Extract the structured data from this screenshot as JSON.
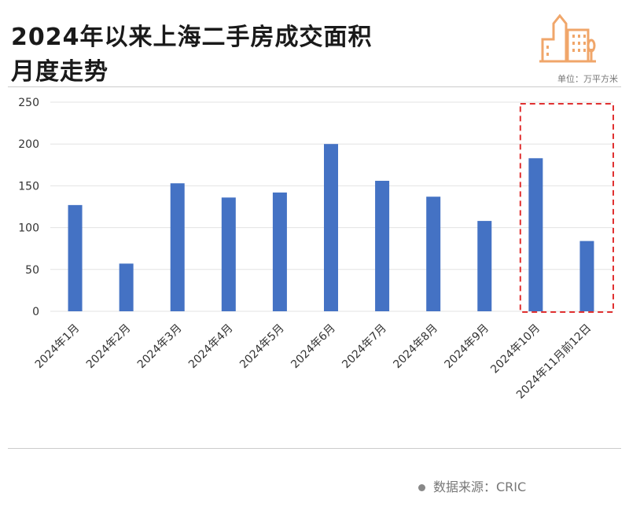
{
  "header": {
    "title_line1": "2024年以来上海二手房成交面积",
    "title_line2": "月度走势",
    "unit": "单位：万平方米",
    "icon": "building-icon"
  },
  "footer": {
    "source": "数据来源：CRIC"
  },
  "colors": {
    "bar": "#4472c4",
    "highlight": "#e03030",
    "icon": "#f0a66a"
  },
  "chart_data": {
    "type": "bar",
    "title": "2024年以来上海二手房成交面积月度走势",
    "xlabel": "",
    "ylabel": "万平方米",
    "categories": [
      "2024年1月",
      "2024年2月",
      "2024年3月",
      "2024年4月",
      "2024年5月",
      "2024年6月",
      "2024年7月",
      "2024年8月",
      "2024年9月",
      "2024年10月",
      "2024年11月前12日"
    ],
    "values": [
      127,
      57,
      153,
      136,
      142,
      200,
      156,
      137,
      108,
      183,
      84
    ],
    "ylim": [
      0,
      250
    ],
    "yticks": [
      0,
      50,
      100,
      150,
      200,
      250
    ],
    "grid": true,
    "highlighted_categories": [
      "2024年10月",
      "2024年11月前12日"
    ]
  }
}
